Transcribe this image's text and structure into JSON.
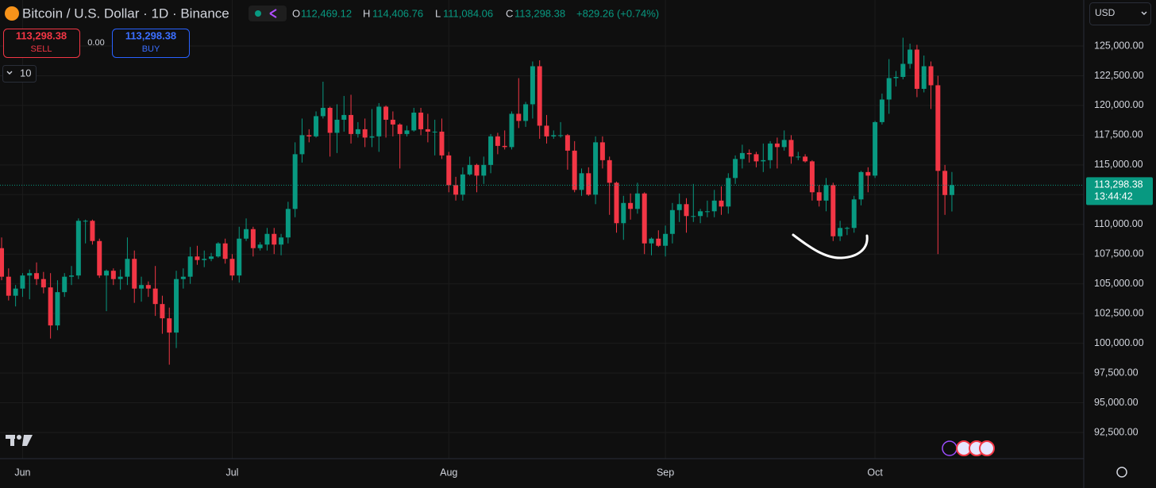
{
  "header": {
    "symbol": "Bitcoin / U.S. Dollar · 1D · Binance",
    "open_label": "O",
    "open": "112,469.12",
    "high_label": "H",
    "high": "114,406.76",
    "low_label": "L",
    "low": "111,084.06",
    "close_label": "C",
    "close": "113,298.38",
    "change": "+829.26 (+0.74%)"
  },
  "trade": {
    "sell_price": "113,298.38",
    "sell": "SELL",
    "spread": "0.00",
    "buy_price": "113,298.38",
    "buy": "BUY",
    "quantity": "10"
  },
  "currency": "USD",
  "chart_data": {
    "type": "candlestick",
    "open": [
      108000,
      105600,
      104000,
      104600,
      105700,
      105900,
      105400,
      104700,
      101500,
      104300,
      105600,
      105700,
      110300,
      110300,
      108600,
      105700,
      106100,
      105400,
      105600,
      107100,
      104600,
      104900,
      104600,
      103300,
      102100,
      100900,
      105400,
      105600,
      107300,
      107000,
      107100,
      107300,
      108400,
      107100,
      105700,
      108800,
      109600,
      108000,
      108300,
      109200,
      108300,
      108900,
      111300,
      115900,
      117500,
      117400,
      119100,
      119800,
      117700,
      118800,
      119200,
      117600,
      118000,
      117300,
      117400,
      119900,
      118800,
      118400,
      117600,
      117900,
      119400,
      118000,
      117800,
      117800,
      115800,
      113300,
      112500,
      114200,
      115000,
      114100,
      115000,
      117400,
      116600,
      116500,
      119300,
      118700,
      120100,
      123300,
      118300,
      117400,
      117500,
      117500,
      116200,
      112900,
      114300,
      112500,
      116900,
      115400,
      113500,
      110100,
      111800,
      111300,
      112600,
      108400,
      108800,
      108200,
      109200,
      111200,
      111700,
      110700,
      110700,
      111100,
      111100,
      112000,
      111500,
      113900,
      115500,
      116000,
      115900,
      115300,
      115400,
      116800,
      116500,
      117100,
      115700,
      115700,
      115300,
      112700,
      112000,
      113300,
      109000,
      109700,
      109700,
      112100,
      114400,
      114100,
      118600,
      120500,
      122300,
      122400,
      123500,
      124700,
      121400,
      123300,
      121700,
      114500,
      112469.12
    ],
    "high": [
      108900,
      106300,
      104900,
      105900,
      106200,
      106800,
      106000,
      105900,
      105300,
      105900,
      106500,
      110500,
      110400,
      110400,
      108800,
      106200,
      106300,
      106200,
      108900,
      107800,
      105600,
      105200,
      106500,
      104000,
      103000,
      106100,
      106300,
      108100,
      108200,
      107800,
      107600,
      108500,
      108800,
      107500,
      109800,
      110500,
      109800,
      108500,
      109700,
      109700,
      109200,
      111900,
      116900,
      118900,
      118000,
      119500,
      122000,
      119900,
      120100,
      120800,
      120900,
      118600,
      118900,
      119700,
      120200,
      120000,
      119500,
      118500,
      118300,
      119800,
      119800,
      119300,
      118800,
      118900,
      116100,
      114000,
      114800,
      115700,
      115100,
      115700,
      117600,
      117700,
      117900,
      119500,
      122300,
      120300,
      123700,
      123800,
      119200,
      117900,
      118600,
      117600,
      117000,
      114700,
      114800,
      117400,
      117400,
      115700,
      113600,
      112400,
      112600,
      113500,
      112700,
      108900,
      109500,
      109900,
      111800,
      112600,
      112200,
      113400,
      111300,
      112000,
      112900,
      113200,
      114300,
      115800,
      116700,
      116300,
      116100,
      116800,
      117000,
      117300,
      117900,
      117500,
      116100,
      115900,
      115400,
      113300,
      113900,
      113500,
      110300,
      109800,
      112400,
      114500,
      114800,
      118700,
      121000,
      123900,
      122900,
      125700,
      125200,
      125100,
      124200,
      123700,
      122500,
      115000,
      114406.76
    ],
    "low": [
      105300,
      103600,
      103100,
      103900,
      103700,
      104900,
      104200,
      100400,
      101100,
      103900,
      104900,
      105400,
      108400,
      108300,
      105500,
      102700,
      104900,
      104500,
      104900,
      103400,
      103500,
      103900,
      102300,
      100800,
      98200,
      99600,
      104600,
      105000,
      106600,
      106400,
      106900,
      107200,
      106700,
      105300,
      105100,
      108600,
      107300,
      107800,
      107800,
      107500,
      107400,
      108400,
      110600,
      115200,
      116900,
      117300,
      118900,
      115700,
      116000,
      117800,
      116800,
      117300,
      116500,
      116500,
      116100,
      117300,
      117400,
      114700,
      117400,
      117800,
      117500,
      116900,
      115800,
      115500,
      112700,
      112000,
      112000,
      114100,
      112700,
      113400,
      114300,
      115900,
      116300,
      116300,
      118100,
      118200,
      118900,
      117200,
      116800,
      117200,
      117300,
      114600,
      112700,
      112400,
      112400,
      111700,
      114700,
      110800,
      109300,
      108700,
      110400,
      110900,
      107500,
      107400,
      108100,
      107300,
      108400,
      110200,
      109300,
      110200,
      110100,
      110600,
      110600,
      110800,
      110900,
      113400,
      114700,
      115200,
      114800,
      114400,
      114700,
      114700,
      116200,
      115100,
      115400,
      115200,
      112000,
      111500,
      111100,
      108600,
      108600,
      109100,
      109300,
      111600,
      112700,
      113900,
      118400,
      119300,
      121600,
      122200,
      123100,
      120700,
      121100,
      119700,
      107500,
      110800,
      111084.06
    ],
    "close": [
      105600,
      104000,
      104600,
      105700,
      105900,
      105400,
      104700,
      101500,
      104300,
      105600,
      105700,
      110300,
      110300,
      108600,
      105700,
      106100,
      105400,
      105600,
      107100,
      104600,
      104900,
      104600,
      103300,
      102100,
      100900,
      105400,
      105600,
      107300,
      107000,
      107100,
      107300,
      108400,
      107100,
      105700,
      108800,
      109600,
      108000,
      108300,
      109200,
      108300,
      108900,
      111300,
      115900,
      117500,
      117400,
      119100,
      119800,
      117700,
      118800,
      119200,
      117600,
      118000,
      117300,
      117400,
      119900,
      118800,
      118400,
      117600,
      117900,
      119400,
      118000,
      117800,
      117800,
      115800,
      113300,
      112500,
      114200,
      115000,
      114100,
      115000,
      117400,
      116600,
      116500,
      119300,
      118700,
      120100,
      123300,
      118300,
      117400,
      117500,
      117500,
      116200,
      112900,
      114300,
      112500,
      116900,
      115400,
      113500,
      110100,
      111800,
      111300,
      112600,
      108400,
      108800,
      108200,
      109200,
      111200,
      111700,
      110700,
      110700,
      111100,
      111100,
      112000,
      111500,
      113900,
      115500,
      116000,
      115900,
      115300,
      115400,
      116800,
      116500,
      117100,
      115700,
      115700,
      115300,
      112700,
      112000,
      113300,
      109000,
      109700,
      109700,
      112100,
      114400,
      114100,
      118600,
      120500,
      122300,
      122400,
      123500,
      124700,
      121400,
      123300,
      121700,
      114500,
      112469.12,
      113298.38
    ],
    "up_color": "#089981",
    "down_color": "#f23645",
    "xlim": [
      -0.23,
      154.87
    ],
    "xticks": [
      {
        "value": 3,
        "label": "Jun"
      },
      {
        "value": 33,
        "label": "Jul"
      },
      {
        "value": 64,
        "label": "Aug"
      },
      {
        "value": 95,
        "label": "Sep"
      },
      {
        "value": 125,
        "label": "Oct"
      }
    ],
    "ylim": [
      90297,
      128871
    ],
    "yticks": [
      {
        "value": 92500,
        "label": "92,500.00"
      },
      {
        "value": 95000,
        "label": "95,000.00"
      },
      {
        "value": 97500,
        "label": "97,500.00"
      },
      {
        "value": 100000,
        "label": "100,000.00"
      },
      {
        "value": 102500,
        "label": "102,500.00"
      },
      {
        "value": 105000,
        "label": "105,000.00"
      },
      {
        "value": 107500,
        "label": "107,500.00"
      },
      {
        "value": 110000,
        "label": "110,000.00"
      },
      {
        "value": 112500,
        "label": "112,500.00"
      },
      {
        "value": 115000,
        "label": "115,000.00"
      },
      {
        "value": 117500,
        "label": "117,500.00"
      },
      {
        "value": 120000,
        "label": "120,000.00"
      },
      {
        "value": 122500,
        "label": "122,500.00"
      },
      {
        "value": 125000,
        "label": "125,000.00"
      }
    ],
    "grid": true,
    "last_price_label": "113,298.38",
    "countdown": "13:44:42"
  }
}
